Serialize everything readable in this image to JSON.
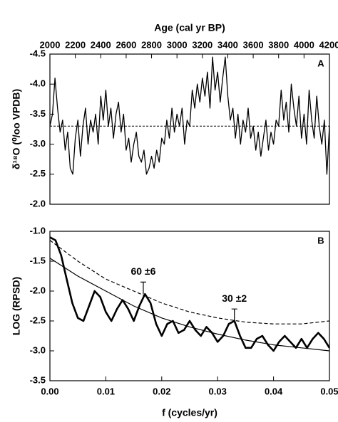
{
  "chart_data": [
    {
      "type": "line",
      "panel_label": "A",
      "x_label": "Age (cal yr BP)",
      "y_label": "δ¹⁸O (⁰/oo VPDB)",
      "x_axis_position": "top",
      "xlim": [
        2000,
        4200
      ],
      "xticks": [
        2000,
        2200,
        2400,
        2600,
        2800,
        3000,
        3200,
        3400,
        3600,
        3800,
        4000,
        4200
      ],
      "ylim": [
        -2.0,
        -4.5
      ],
      "yticks": [
        -4.5,
        {
          "value": -4,
          "label": "-4.0"
        },
        -3.5,
        {
          "value": -3,
          "label": "-3.0"
        },
        -2.5,
        {
          "value": -2,
          "label": "-2.0"
        }
      ],
      "reference_line": -3.3,
      "x": [
        2000,
        2020,
        2040,
        2060,
        2080,
        2100,
        2120,
        2140,
        2160,
        2180,
        2200,
        2220,
        2240,
        2260,
        2280,
        2300,
        2320,
        2340,
        2360,
        2380,
        2400,
        2420,
        2440,
        2460,
        2480,
        2500,
        2520,
        2540,
        2560,
        2580,
        2600,
        2620,
        2640,
        2660,
        2680,
        2700,
        2720,
        2740,
        2760,
        2780,
        2800,
        2820,
        2840,
        2860,
        2880,
        2900,
        2920,
        2940,
        2960,
        2980,
        3000,
        3020,
        3040,
        3060,
        3080,
        3100,
        3120,
        3140,
        3160,
        3180,
        3200,
        3220,
        3240,
        3260,
        3280,
        3300,
        3320,
        3340,
        3360,
        3380,
        3400,
        3420,
        3440,
        3460,
        3480,
        3500,
        3520,
        3540,
        3560,
        3580,
        3600,
        3620,
        3640,
        3660,
        3680,
        3700,
        3720,
        3740,
        3760,
        3780,
        3800,
        3820,
        3840,
        3860,
        3880,
        3900,
        3920,
        3940,
        3960,
        3980,
        4000,
        4020,
        4040,
        4060,
        4080,
        4100,
        4120,
        4140,
        4160,
        4180,
        4200
      ],
      "series": [
        {
          "color": "#000000",
          "width": 1.3,
          "dashed": false,
          "values": [
            -3.3,
            -3.5,
            -4.1,
            -3.6,
            -3.2,
            -3.4,
            -2.9,
            -3.2,
            -2.6,
            -2.5,
            -3.1,
            -3.4,
            -2.8,
            -3.3,
            -3.6,
            -3.0,
            -3.4,
            -3.2,
            -3.5,
            -3.0,
            -3.8,
            -3.4,
            -3.9,
            -3.3,
            -3.6,
            -3.1,
            -3.5,
            -3.7,
            -3.2,
            -3.5,
            -2.9,
            -3.1,
            -2.7,
            -3.0,
            -3.2,
            -2.8,
            -2.7,
            -2.9,
            -2.5,
            -2.6,
            -2.8,
            -2.6,
            -2.9,
            -2.7,
            -3.1,
            -3.0,
            -3.4,
            -3.1,
            -3.6,
            -3.2,
            -3.5,
            -3.3,
            -3.6,
            -3.0,
            -3.4,
            -3.3,
            -3.9,
            -3.6,
            -4.0,
            -3.7,
            -4.1,
            -3.8,
            -4.2,
            -3.6,
            -4.45,
            -3.9,
            -4.2,
            -3.7,
            -4.1,
            -4.45,
            -3.8,
            -3.4,
            -3.6,
            -3.1,
            -3.5,
            -3.0,
            -3.4,
            -3.2,
            -3.6,
            -3.1,
            -3.3,
            -2.9,
            -3.2,
            -2.8,
            -3.1,
            -3.4,
            -2.9,
            -3.2,
            -3.0,
            -3.4,
            -3.3,
            -3.9,
            -3.4,
            -3.7,
            -3.2,
            -4.0,
            -3.6,
            -3.3,
            -3.8,
            -3.1,
            -3.5,
            -3.0,
            -3.9,
            -3.4,
            -3.1,
            -3.8,
            -3.3,
            -3.0,
            -3.4,
            -2.5,
            -3.3
          ]
        }
      ]
    },
    {
      "type": "line",
      "panel_label": "B",
      "x_label": "f (cycles/yr)",
      "y_label": "LOG (RPSD)",
      "x_axis_position": "bottom",
      "xlim": [
        0,
        0.05
      ],
      "xticks": [
        {
          "value": 0,
          "label": "0.00"
        },
        0.01,
        0.02,
        0.03,
        0.04,
        0.05
      ],
      "ylim": [
        -3.5,
        -1.0
      ],
      "yticks": [
        {
          "value": -1,
          "label": "-1.0"
        },
        -1.5,
        {
          "value": -2,
          "label": "-2.0"
        },
        -2.5,
        {
          "value": -3,
          "label": "-3.0"
        },
        -3.5
      ],
      "series": [
        {
          "color": "#000000",
          "width": 2.6,
          "dashed": false,
          "x": [
            0,
            0.001,
            0.002,
            0.003,
            0.004,
            0.005,
            0.006,
            0.007,
            0.008,
            0.009,
            0.01,
            0.011,
            0.012,
            0.013,
            0.014,
            0.015,
            0.016,
            0.017,
            0.018,
            0.019,
            0.02,
            0.021,
            0.022,
            0.023,
            0.024,
            0.025,
            0.026,
            0.027,
            0.028,
            0.029,
            0.03,
            0.031,
            0.032,
            0.033,
            0.034,
            0.035,
            0.036,
            0.037,
            0.038,
            0.039,
            0.04,
            0.041,
            0.042,
            0.043,
            0.044,
            0.045,
            0.046,
            0.047,
            0.048,
            0.049,
            0.05
          ],
          "values": [
            -1.1,
            -1.15,
            -1.4,
            -1.8,
            -2.2,
            -2.45,
            -2.5,
            -2.25,
            -2.0,
            -2.1,
            -2.35,
            -2.5,
            -2.3,
            -2.15,
            -2.3,
            -2.5,
            -2.25,
            -2.05,
            -2.2,
            -2.55,
            -2.75,
            -2.55,
            -2.5,
            -2.7,
            -2.65,
            -2.5,
            -2.65,
            -2.75,
            -2.6,
            -2.7,
            -2.85,
            -2.75,
            -2.55,
            -2.5,
            -2.75,
            -2.95,
            -2.95,
            -2.8,
            -2.75,
            -2.9,
            -3.0,
            -2.85,
            -2.75,
            -2.85,
            -2.95,
            -2.8,
            -2.95,
            -2.8,
            -2.7,
            -2.8,
            -2.95
          ]
        },
        {
          "color": "#000000",
          "width": 1.2,
          "dashed": false,
          "x": [
            0,
            0.005,
            0.01,
            0.015,
            0.02,
            0.025,
            0.03,
            0.035,
            0.04,
            0.045,
            0.05
          ],
          "values": [
            -1.45,
            -1.75,
            -2.0,
            -2.25,
            -2.45,
            -2.6,
            -2.72,
            -2.82,
            -2.9,
            -2.95,
            -3.0
          ]
        },
        {
          "color": "#000000",
          "width": 1.2,
          "dashed": true,
          "x": [
            0,
            0.005,
            0.01,
            0.015,
            0.02,
            0.025,
            0.03,
            0.035,
            0.04,
            0.045,
            0.05
          ],
          "values": [
            -1.15,
            -1.5,
            -1.8,
            -2.0,
            -2.2,
            -2.35,
            -2.45,
            -2.52,
            -2.55,
            -2.55,
            -2.5
          ]
        }
      ],
      "error_bars": [
        {
          "x": 0.0167,
          "value": -2.05,
          "error": 0.2,
          "label": "60 ±6"
        },
        {
          "x": 0.033,
          "value": -2.5,
          "error": 0.2,
          "label": "30 ±2"
        }
      ]
    }
  ]
}
